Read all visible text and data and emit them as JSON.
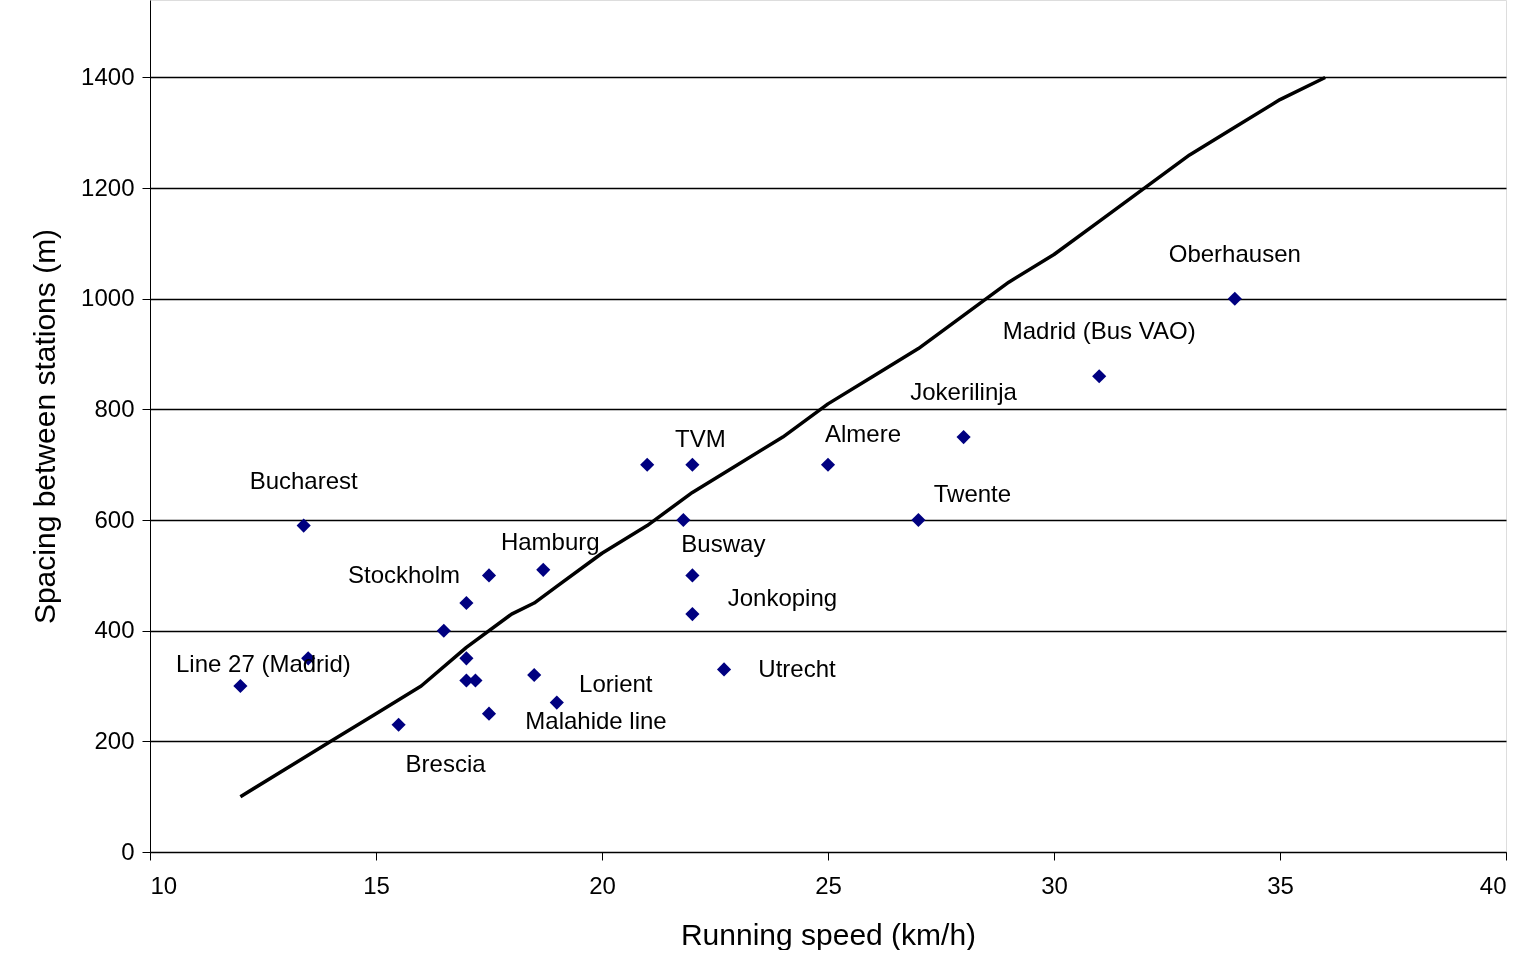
{
  "chart_data": {
    "type": "scatter",
    "xlabel": "Running speed (km/h)",
    "ylabel": "Spacing between stations (m)",
    "xlim": [
      10,
      40
    ],
    "xticks": [
      10,
      15,
      20,
      25,
      30,
      35,
      40
    ],
    "ylim": [
      0,
      1540
    ],
    "yticks": [
      0,
      200,
      400,
      600,
      800,
      1000,
      1200,
      1400
    ],
    "grid": "y",
    "marker": "diamond",
    "series": [
      {
        "color": "#000080",
        "x": [
          13.4,
          12.0,
          13.5,
          17.5,
          18.7,
          17.0,
          16.5,
          17.0,
          17.0,
          17.2,
          18.5,
          19.0,
          17.5,
          15.5,
          21.0,
          22.0,
          21.8,
          22.0,
          22.0,
          22.7,
          25.0,
          27.0,
          28.0,
          31.0,
          34.0
        ],
        "values": [
          590,
          300,
          350,
          500,
          510,
          450,
          400,
          350,
          310,
          310,
          320,
          270,
          250,
          230,
          700,
          700,
          600,
          500,
          430,
          330,
          700,
          600,
          750,
          860,
          1000
        ]
      },
      {
        "type": "line",
        "color": "#000000",
        "marker": "none",
        "line_style": "solid",
        "x": [
          12,
          13,
          14,
          15,
          16,
          17,
          18,
          18.5,
          19,
          20,
          21,
          22,
          23,
          24,
          25,
          26,
          27,
          28,
          29,
          30,
          31,
          32,
          33,
          34,
          35,
          36
        ],
        "values": [
          100,
          150,
          200,
          250,
          300,
          370,
          430,
          450,
          480,
          540,
          590,
          650,
          700,
          750,
          810,
          860,
          910,
          970,
          1030,
          1080,
          1140,
          1200,
          1260,
          1310,
          1360,
          1400
        ]
      }
    ],
    "annotations": [
      {
        "text": "Oberhausen",
        "x": 34.0,
        "y": 1000
      },
      {
        "text": "Madrid (Bus VAO)",
        "x": 31.0,
        "y": 860
      },
      {
        "text": "Jokerilinja",
        "x": 28.0,
        "y": 750
      },
      {
        "text": "Almere",
        "x": 25.0,
        "y": 700
      },
      {
        "text": "Twente",
        "x": 27.0,
        "y": 600
      },
      {
        "text": "TVM",
        "x": 22.0,
        "y": 700
      },
      {
        "text": "Busway",
        "x": 21.8,
        "y": 600
      },
      {
        "text": "Jonkoping",
        "x": 22.0,
        "y": 430
      },
      {
        "text": "Utrecht",
        "x": 22.7,
        "y": 330
      },
      {
        "text": "Lorient",
        "x": 19.0,
        "y": 270
      },
      {
        "text": "Malahide line",
        "x": 17.5,
        "y": 250
      },
      {
        "text": "Brescia",
        "x": 15.5,
        "y": 230
      },
      {
        "text": "Line 27 (Madrid)",
        "x": 12.0,
        "y": 300
      },
      {
        "text": "Stockholm",
        "x": 17.5,
        "y": 500
      },
      {
        "text": "Hamburg",
        "x": 18.7,
        "y": 510
      },
      {
        "text": "Bucharest",
        "x": 13.4,
        "y": 590
      }
    ]
  }
}
